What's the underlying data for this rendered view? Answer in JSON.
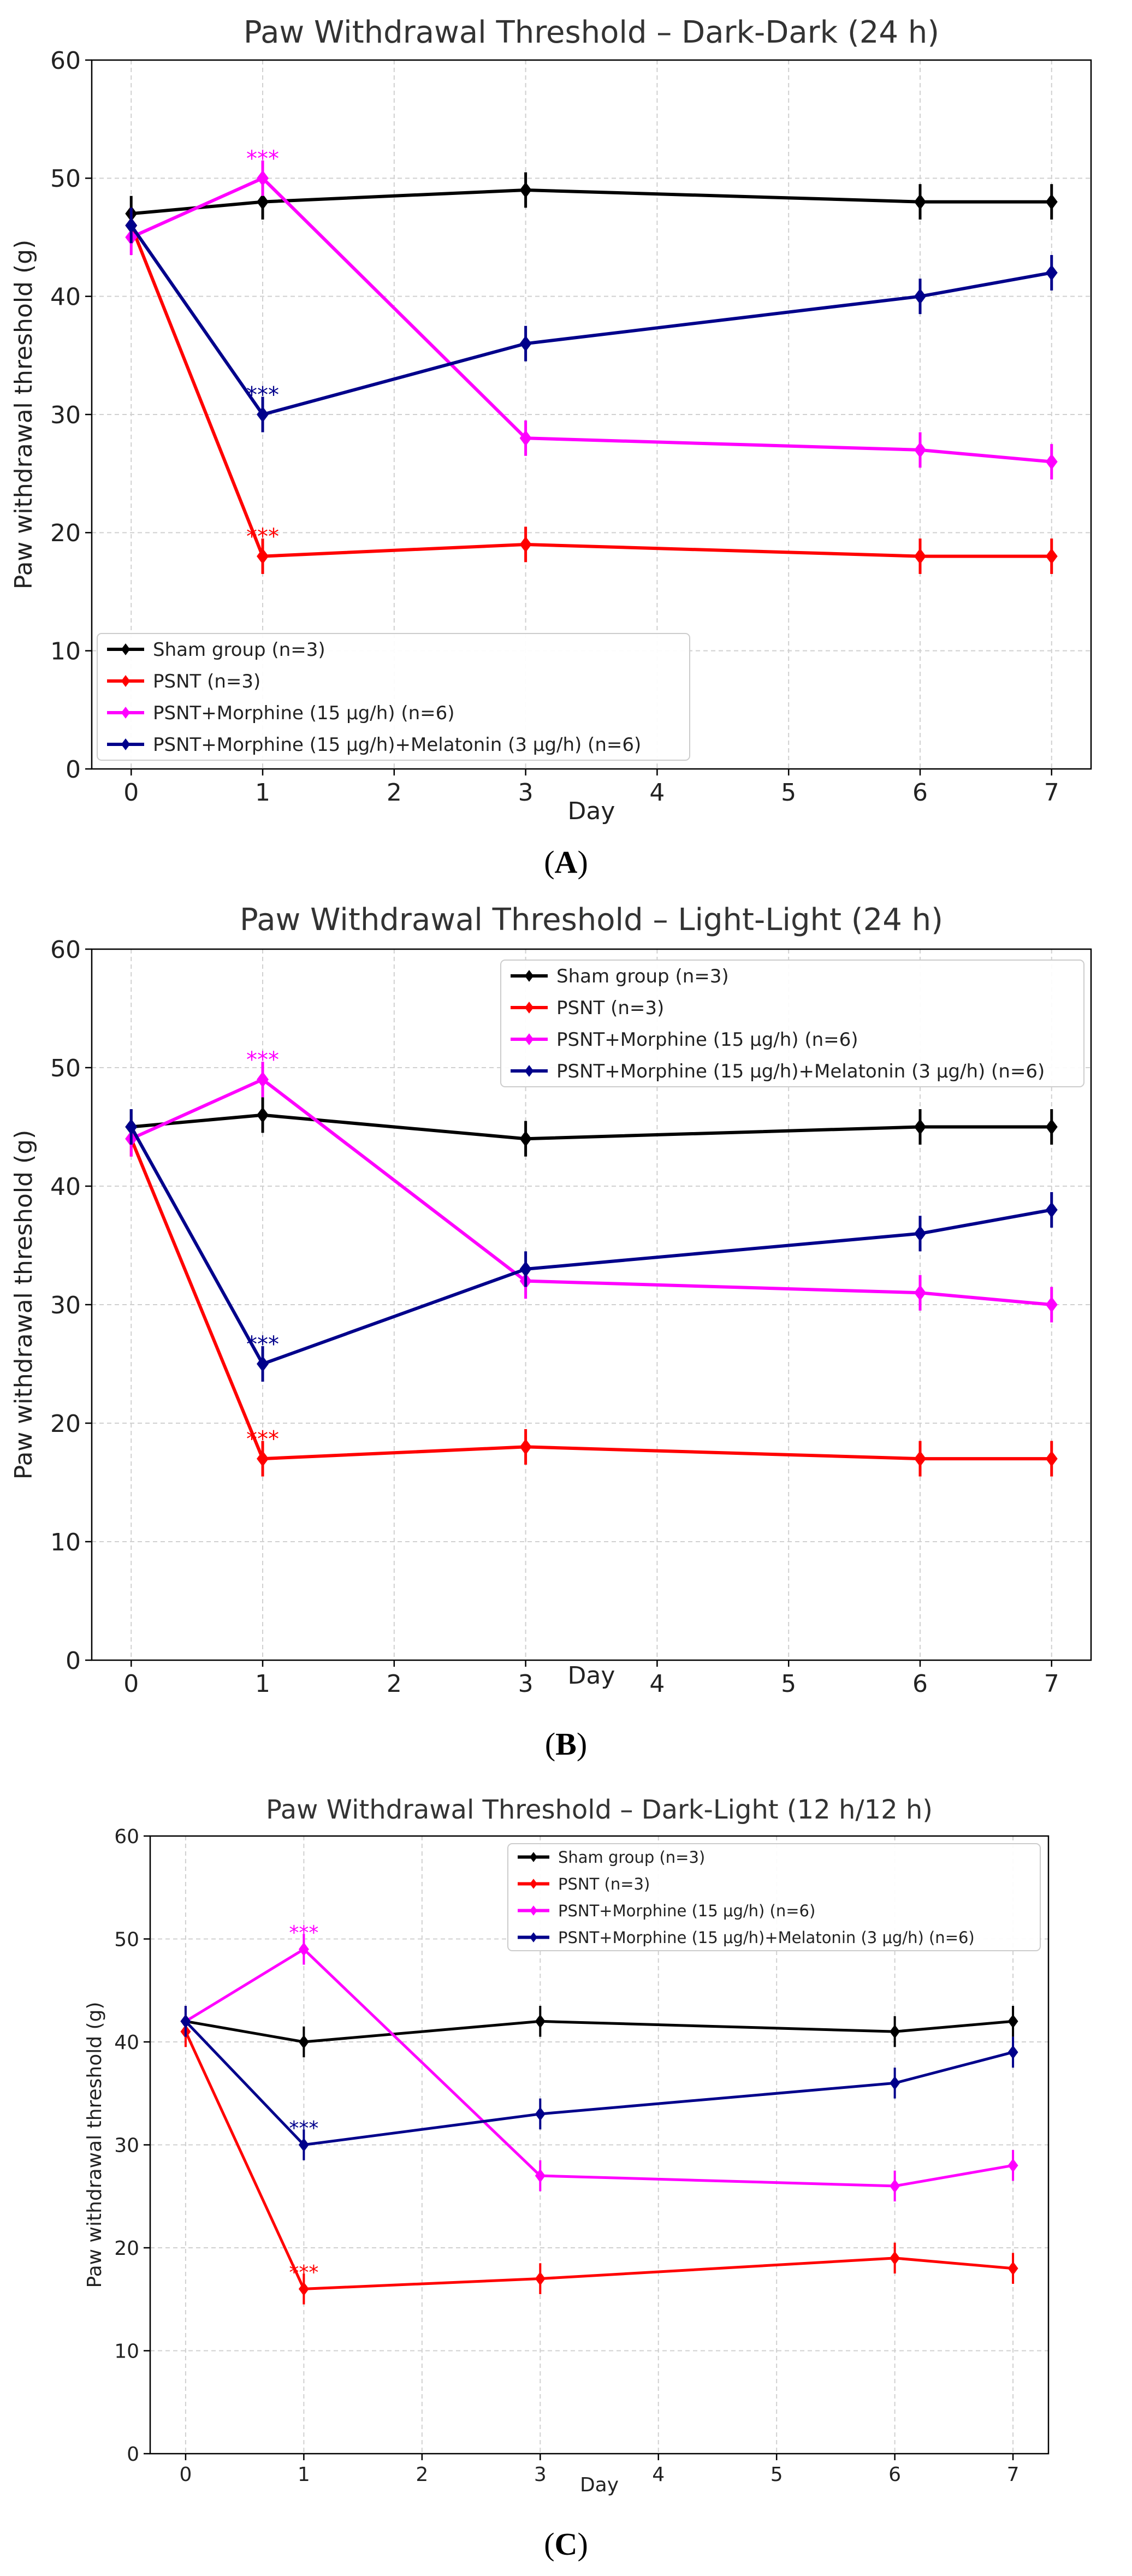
{
  "chart_data": [
    {
      "type": "line",
      "title": "Paw Withdrawal Threshold – Dark-Dark (24 h)",
      "xlabel": "Day",
      "ylabel": "Paw withdrawal threshold (g)",
      "caption": "A",
      "caption_left": "(",
      "caption_right": ")",
      "xlim": [
        -0.3,
        7.3
      ],
      "ylim": [
        0,
        60
      ],
      "xticks": [
        0,
        1,
        2,
        3,
        4,
        5,
        6,
        7
      ],
      "yticks": [
        0,
        10,
        20,
        30,
        40,
        50,
        60
      ],
      "grid": true,
      "legend": "bottom-left",
      "x": [
        0,
        1,
        3,
        6,
        7
      ],
      "series": [
        {
          "name": "Sham group (n=3)",
          "color": "#000000",
          "values": [
            47,
            48,
            49,
            48,
            48
          ],
          "err": 1.5
        },
        {
          "name": "PSNT (n=3)",
          "color": "#ff0000",
          "values": [
            46,
            18,
            19,
            18,
            18
          ],
          "err": 1.5
        },
        {
          "name": "PSNT+Morphine (15 μg/h) (n=6)",
          "color": "#ff00ff",
          "values": [
            45,
            50,
            28,
            27,
            26
          ],
          "err": 1.5
        },
        {
          "name": "PSNT+Morphine (15 μg/h)+Melatonin (3 μg/h) (n=6)",
          "color": "#00008b",
          "values": [
            46,
            30,
            36,
            40,
            42
          ],
          "err": 1.5
        }
      ],
      "annotations": [
        {
          "text": "***",
          "x": 1,
          "y": 51.5,
          "color": "#ff00ff"
        },
        {
          "text": "***",
          "x": 1,
          "y": 31.5,
          "color": "#00008b"
        },
        {
          "text": "***",
          "x": 1,
          "y": 19.5,
          "color": "#ff0000"
        }
      ]
    },
    {
      "type": "line",
      "title": "Paw Withdrawal Threshold – Light-Light (24 h)",
      "xlabel": "Day",
      "ylabel": "Paw withdrawal threshold (g)",
      "caption": "B",
      "caption_left": "(",
      "caption_right": ")",
      "xlim": [
        -0.3,
        7.3
      ],
      "ylim": [
        0,
        60
      ],
      "xticks": [
        0,
        1,
        2,
        3,
        4,
        5,
        6,
        7
      ],
      "yticks": [
        0,
        10,
        20,
        30,
        40,
        50,
        60
      ],
      "grid": true,
      "legend": "top-right",
      "x": [
        0,
        1,
        3,
        6,
        7
      ],
      "series": [
        {
          "name": "Sham group (n=3)",
          "color": "#000000",
          "values": [
            45,
            46,
            44,
            45,
            45
          ],
          "err": 1.5
        },
        {
          "name": "PSNT (n=3)",
          "color": "#ff0000",
          "values": [
            44,
            17,
            18,
            17,
            17
          ],
          "err": 1.5
        },
        {
          "name": "PSNT+Morphine (15 μg/h) (n=6)",
          "color": "#ff00ff",
          "values": [
            44,
            49,
            32,
            31,
            30
          ],
          "err": 1.5
        },
        {
          "name": "PSNT+Morphine (15 μg/h)+Melatonin (3 μg/h) (n=6)",
          "color": "#00008b",
          "values": [
            45,
            25,
            33,
            36,
            38
          ],
          "err": 1.5
        }
      ],
      "annotations": [
        {
          "text": "***",
          "x": 1,
          "y": 50.5,
          "color": "#ff00ff"
        },
        {
          "text": "***",
          "x": 1,
          "y": 26.5,
          "color": "#00008b"
        },
        {
          "text": "***",
          "x": 1,
          "y": 18.5,
          "color": "#ff0000"
        }
      ]
    },
    {
      "type": "line",
      "title": "Paw Withdrawal Threshold – Dark-Light (12 h/12 h)",
      "xlabel": "Day",
      "ylabel": "Paw withdrawal threshold (g)",
      "caption": "C",
      "caption_left": "(",
      "caption_right": ")",
      "xlim": [
        -0.3,
        7.3
      ],
      "ylim": [
        0,
        60
      ],
      "xticks": [
        0,
        1,
        2,
        3,
        4,
        5,
        6,
        7
      ],
      "yticks": [
        0,
        10,
        20,
        30,
        40,
        50,
        60
      ],
      "grid": true,
      "legend": "top-right",
      "x": [
        0,
        1,
        3,
        6,
        7
      ],
      "series": [
        {
          "name": "Sham group (n=3)",
          "color": "#000000",
          "values": [
            42,
            40,
            42,
            41,
            42
          ],
          "err": 1.5
        },
        {
          "name": "PSNT (n=3)",
          "color": "#ff0000",
          "values": [
            41,
            16,
            17,
            19,
            18
          ],
          "err": 1.5
        },
        {
          "name": "PSNT+Morphine (15 μg/h) (n=6)",
          "color": "#ff00ff",
          "values": [
            42,
            49,
            27,
            26,
            28
          ],
          "err": 1.5
        },
        {
          "name": "PSNT+Morphine (15 μg/h)+Melatonin (3 μg/h) (n=6)",
          "color": "#00008b",
          "values": [
            42,
            30,
            33,
            36,
            39
          ],
          "err": 1.5
        }
      ],
      "annotations": [
        {
          "text": "***",
          "x": 1,
          "y": 50.5,
          "color": "#ff00ff"
        },
        {
          "text": "***",
          "x": 1,
          "y": 31.5,
          "color": "#00008b"
        },
        {
          "text": "***",
          "x": 1,
          "y": 17.5,
          "color": "#ff0000"
        }
      ]
    }
  ]
}
